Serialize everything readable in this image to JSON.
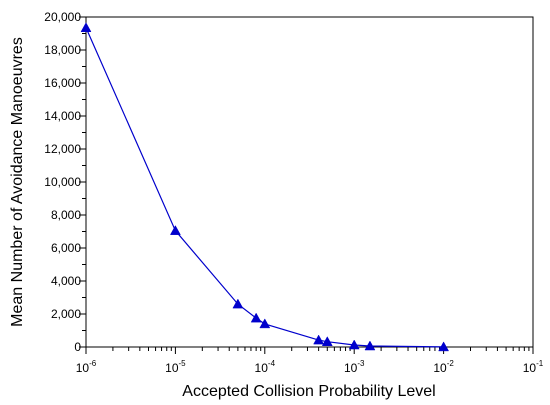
{
  "chart_data": {
    "type": "line",
    "xlabel": "Accepted Collision Probability Level",
    "ylabel": "Mean Number of Avoidance Manoeuvres",
    "x_scale": "log",
    "xlim": [
      1e-06,
      0.1
    ],
    "ylim": [
      0,
      20000
    ],
    "x_ticks": [
      {
        "value": 1e-06,
        "base": "10",
        "exp": "-6"
      },
      {
        "value": 1e-05,
        "base": "10",
        "exp": "-5"
      },
      {
        "value": 0.0001,
        "base": "10",
        "exp": "-4"
      },
      {
        "value": 0.001,
        "base": "10",
        "exp": "-3"
      },
      {
        "value": 0.01,
        "base": "10",
        "exp": "-2"
      },
      {
        "value": 0.1,
        "base": "10",
        "exp": "-1"
      }
    ],
    "y_ticks": [
      {
        "value": 0,
        "label": "0"
      },
      {
        "value": 2000,
        "label": "2,000"
      },
      {
        "value": 4000,
        "label": "4,000"
      },
      {
        "value": 6000,
        "label": "6,000"
      },
      {
        "value": 8000,
        "label": "8,000"
      },
      {
        "value": 10000,
        "label": "10,000"
      },
      {
        "value": 12000,
        "label": "12,000"
      },
      {
        "value": 14000,
        "label": "14,000"
      },
      {
        "value": 16000,
        "label": "16,000"
      },
      {
        "value": 18000,
        "label": "18,000"
      },
      {
        "value": 20000,
        "label": "20,000"
      }
    ],
    "grid": false,
    "series": [
      {
        "color": "#0000cc",
        "marker": "triangle",
        "x": [
          1e-06,
          1e-05,
          5e-05,
          8e-05,
          0.0001,
          0.0004,
          0.0005,
          0.001,
          0.0015,
          0.01
        ],
        "y": [
          19350,
          7050,
          2600,
          1750,
          1400,
          420,
          320,
          120,
          60,
          5
        ]
      }
    ]
  }
}
